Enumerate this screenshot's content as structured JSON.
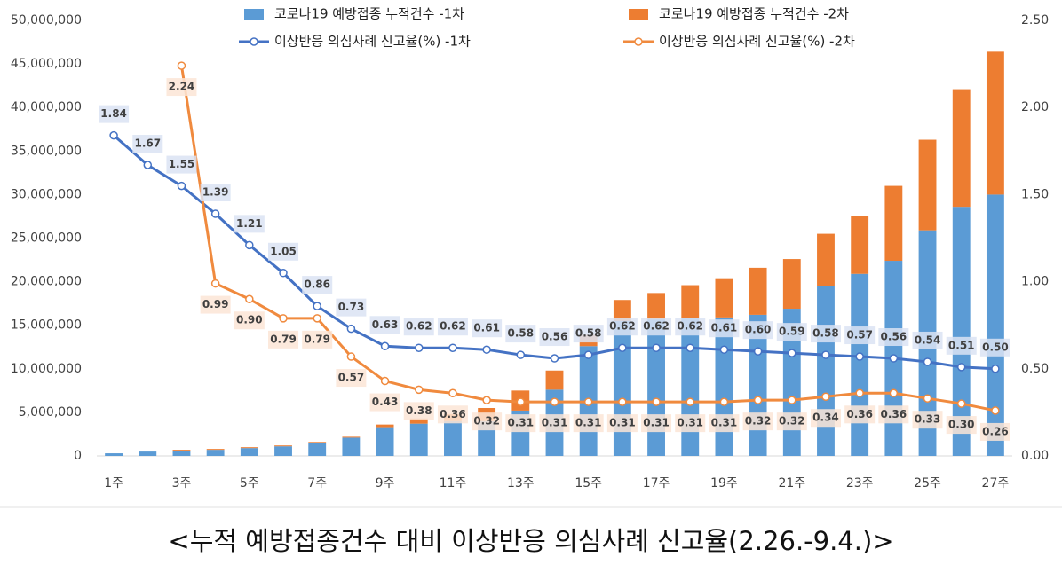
{
  "chart_data": {
    "type": "bar-line",
    "caption": "<누적 예방접종건수 대비 이상반응 의심사례 신고율(2.26.-9.4.)>",
    "categories": [
      "1주",
      null,
      "3주",
      null,
      "5주",
      null,
      "7주",
      null,
      "9주",
      null,
      "11주",
      null,
      "13주",
      null,
      "15주",
      null,
      "17주",
      null,
      "19주",
      null,
      "21주",
      null,
      "23주",
      null,
      "25주",
      null,
      "27주"
    ],
    "series": [
      {
        "name": "코로나19 예방접종 누적건수 -1차",
        "kind": "bar",
        "color": "#5b9bd5",
        "values": [
          300000,
          500000,
          600000,
          700000,
          900000,
          1100000,
          1500000,
          2100000,
          3300000,
          3700000,
          4000000,
          4000000,
          5200000,
          7600000,
          12600000,
          15500000,
          15700000,
          15800000,
          15900000,
          16200000,
          16900000,
          19500000,
          20900000,
          22400000,
          25900000,
          28600000,
          30000000
        ]
      },
      {
        "name": "코로나19 예방접종 누적건수 -2차",
        "kind": "bar",
        "color": "#ed7d31",
        "values": [
          0,
          0,
          100000,
          100000,
          100000,
          100000,
          100000,
          100000,
          300000,
          600000,
          800000,
          1500000,
          2300000,
          2200000,
          1300000,
          2400000,
          3000000,
          3800000,
          4500000,
          5400000,
          5700000,
          6000000,
          6600000,
          8600000,
          10400000,
          13500000,
          16400000
        ]
      },
      {
        "name": "이상반응 의심사례 신고율(%) -1차",
        "kind": "line",
        "axis": "y2",
        "color": "#4472c4",
        "label_bg": "#dae3f3",
        "values": [
          1.84,
          1.67,
          1.55,
          1.39,
          1.21,
          1.05,
          0.86,
          0.73,
          0.63,
          0.62,
          0.62,
          0.61,
          0.58,
          0.56,
          0.58,
          0.62,
          0.62,
          0.62,
          0.61,
          0.6,
          0.59,
          0.58,
          0.57,
          0.56,
          0.54,
          0.51,
          0.5
        ],
        "value_labels": [
          "1.84",
          "1.67",
          "1.55",
          "1.39",
          "1.21",
          "1.05",
          "0.86",
          "0.73",
          "0.63",
          "0.62",
          "0.62",
          "0.61",
          "0.58",
          "0.56",
          "0.58",
          "0.62",
          "0.62",
          "0.62",
          "0.61",
          "0.60",
          "0.59",
          "0.58",
          "0.57",
          "0.56",
          "0.54",
          "0.51",
          "0.50"
        ]
      },
      {
        "name": "이상반응 의심사례 신고율(%) -2차",
        "kind": "line",
        "axis": "y2",
        "color": "#f08a3e",
        "label_bg": "#fbe5d6",
        "values": [
          null,
          null,
          2.24,
          0.99,
          0.9,
          0.79,
          0.79,
          0.57,
          0.43,
          0.38,
          0.36,
          0.32,
          0.31,
          0.31,
          0.31,
          0.31,
          0.31,
          0.31,
          0.31,
          0.32,
          0.32,
          0.34,
          0.36,
          0.36,
          0.33,
          0.3,
          0.26
        ],
        "value_labels": [
          null,
          null,
          "2.24",
          "0.99",
          "0.90",
          "0.79",
          "0.79",
          "0.57",
          "0.43",
          "0.38",
          "0.36",
          "0.32",
          "0.31",
          "0.31",
          "0.31",
          "0.31",
          "0.31",
          "0.31",
          "0.31",
          "0.32",
          "0.32",
          "0.34",
          "0.36",
          "0.36",
          "0.33",
          "0.30",
          "0.26"
        ]
      }
    ],
    "ylim": [
      0,
      50000000
    ],
    "yticks": [
      0,
      {
        "value": 5000000,
        "label": "5,000,000"
      },
      {
        "value": 10000000,
        "label": "10,000,000"
      },
      {
        "value": 15000000,
        "label": "15,000,000"
      },
      {
        "value": 20000000,
        "label": "20,000,000"
      },
      {
        "value": 25000000,
        "label": "25,000,000"
      },
      {
        "value": 30000000,
        "label": "30,000,000"
      },
      {
        "value": 35000000,
        "label": "35,000,000"
      },
      {
        "value": 40000000,
        "label": "40,000,000"
      },
      {
        "value": 45000000,
        "label": "45,000,000"
      },
      {
        "value": 50000000,
        "label": "50,000,000"
      }
    ],
    "y2lim": [
      0,
      2.5
    ],
    "y2ticks": [
      {
        "value": 0,
        "label": "0.00"
      },
      {
        "value": 0.5,
        "label": "0.50"
      },
      {
        "value": 1,
        "label": "1.00"
      },
      {
        "value": 1.5,
        "label": "1.50"
      },
      {
        "value": 2,
        "label": "2.00"
      },
      {
        "value": 2.5,
        "label": "2.50"
      }
    ],
    "grid": false,
    "legend": "top"
  }
}
